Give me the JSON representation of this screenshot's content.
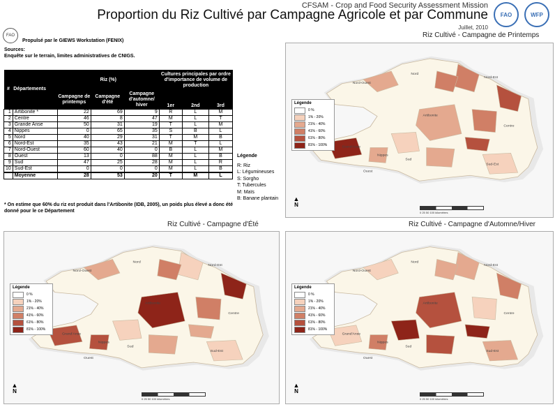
{
  "header": {
    "mission": "CFSAM - Crop and Food Security Assessment Mission",
    "title": "Proportion du Riz Cultivé par Campagne Agricole et par Commune",
    "date": "Juillet, 2010",
    "logo_left": "FAO",
    "logo_right": "WFP"
  },
  "credits": {
    "propulse": "Propulsé par le GIEWS Workstation (FENIX)",
    "sources_label": "Sources:",
    "sources_text": "Enquête sur le terrain, limites administratives de CNIGS."
  },
  "table": {
    "h_num": "#",
    "h_dept": "Départements",
    "h_riz": "Riz (%)",
    "h_prin": "Campagne de printemps",
    "h_ete": "Campagne d'été",
    "h_aut": "Campagne d'automne/ hiver",
    "h_cult": "Cultures principales par ordre d'importance de volume de production",
    "h_1": "1er",
    "h_2": "2nd",
    "h_3": "3rd",
    "rows": [
      {
        "n": "1",
        "d": "Artibonite *",
        "p": "22",
        "e": "69",
        "a": "9",
        "c1": "R",
        "c2": "L",
        "c3": "M"
      },
      {
        "n": "2",
        "d": "Centre",
        "p": "46",
        "e": "8",
        "a": "47",
        "c1": "M",
        "c2": "L",
        "c3": "T"
      },
      {
        "n": "3",
        "d": "Grande Anse",
        "p": "50",
        "e": "31",
        "a": "19",
        "c1": "T",
        "c2": "L",
        "c3": "M"
      },
      {
        "n": "4",
        "d": "Nippes",
        "p": "0",
        "e": "65",
        "a": "35",
        "c1": "S",
        "c2": "B",
        "c3": "L"
      },
      {
        "n": "5",
        "d": "Nord",
        "p": "40",
        "e": "29",
        "a": "31",
        "c1": "T",
        "c2": "M",
        "c3": "B"
      },
      {
        "n": "6",
        "d": "Nord-Est",
        "p": "35",
        "e": "43",
        "a": "21",
        "c1": "M",
        "c2": "T",
        "c3": "L"
      },
      {
        "n": "7",
        "d": "Nord-Ouest",
        "p": "60",
        "e": "40",
        "a": "0",
        "c1": "B",
        "c2": "L",
        "c3": "M"
      },
      {
        "n": "8",
        "d": "Ouest",
        "p": "13",
        "e": "0",
        "a": "88",
        "c1": "M",
        "c2": "L",
        "c3": "B"
      },
      {
        "n": "9",
        "d": "Sud",
        "p": "47",
        "e": "25",
        "a": "28",
        "c1": "M",
        "c2": "L",
        "c3": "R"
      },
      {
        "n": "10",
        "d": "Sud-Est",
        "p": "0",
        "e": "0",
        "a": "0",
        "c1": "M",
        "c2": "L",
        "c3": "B"
      }
    ],
    "avg": {
      "d": "Moyenne",
      "p": "28",
      "e": "53",
      "a": "20",
      "c1": "T",
      "c2": "M",
      "c3": "L"
    }
  },
  "note": "* On estime que 60% du riz est produit dans l'Artibonite (IDB, 2005), un poids plus élevé a donc été donné pour le ce Département",
  "crop_legend": {
    "title": "Légende",
    "items": [
      "R: Riz",
      "L: Légumineuses",
      "S: Sorgho",
      "T: Tubercules",
      "M: Maïs",
      "B: Banane plantain"
    ]
  },
  "map_legend": {
    "title": "Légende",
    "classes": [
      {
        "label": "0 %",
        "color": "#ffffff"
      },
      {
        "label": "1% - 20%",
        "color": "#f6d2bd"
      },
      {
        "label": "21% - 40%",
        "color": "#e4a98f"
      },
      {
        "label": "41% - 60%",
        "color": "#d07f66"
      },
      {
        "label": "61% - 80%",
        "color": "#b5513e"
      },
      {
        "label": "81% - 100%",
        "color": "#8e2419"
      }
    ]
  },
  "maps": {
    "printemps": {
      "title": "Riz Cultivé - Campagne de Printemps"
    },
    "ete": {
      "title": "Riz Cultivé - Campagne d'Été"
    },
    "automne": {
      "title": "Riz Cultivé - Campagne d'Automne/Hiver"
    }
  },
  "map_labels": [
    "Nord-Ouest",
    "Nord",
    "Nord-Est",
    "Artibonite",
    "Centre",
    "Ouest",
    "Grand'Anse",
    "Sud",
    "Sud-Est",
    "Nippes"
  ],
  "scale_text": "0   25   50        100 kilomètres",
  "north": "N"
}
